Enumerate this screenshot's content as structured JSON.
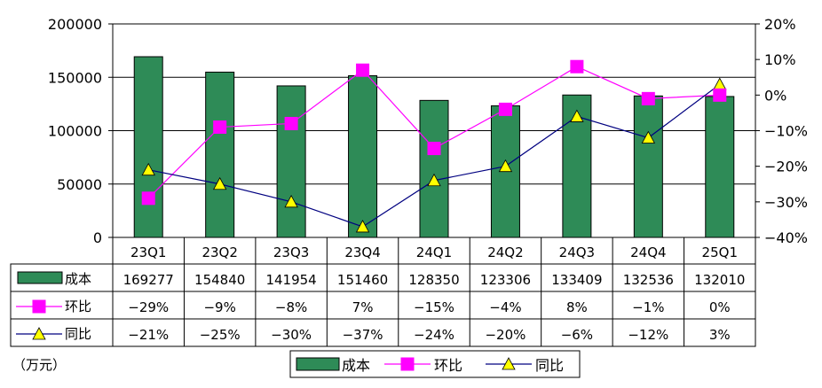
{
  "chart_data": {
    "type": "bar",
    "categories": [
      "23Q1",
      "23Q2",
      "23Q3",
      "23Q4",
      "24Q1",
      "24Q2",
      "24Q3",
      "24Q4",
      "25Q1"
    ],
    "series": [
      {
        "name": "成本",
        "kind": "bar",
        "axis": "left",
        "values": [
          169277,
          154840,
          141954,
          151460,
          128350,
          123306,
          133409,
          132536,
          132010
        ],
        "color": "#2e8b57"
      },
      {
        "name": "环比",
        "kind": "line",
        "axis": "right",
        "marker": "square",
        "values": [
          -29,
          -9,
          -8,
          7,
          -15,
          -4,
          8,
          -1,
          0
        ],
        "labels": [
          "-29%",
          "-9%",
          "-8%",
          "7%",
          "-15%",
          "-4%",
          "8%",
          "-1%",
          "0%"
        ],
        "color": "#ff00ff"
      },
      {
        "name": "同比",
        "kind": "line",
        "axis": "right",
        "marker": "triangle",
        "values": [
          -21,
          -25,
          -30,
          -37,
          -24,
          -20,
          -6,
          -12,
          3
        ],
        "labels": [
          "-21%",
          "-25%",
          "-30%",
          "-37%",
          "-24%",
          "-20%",
          "-6%",
          "-12%",
          "3%"
        ],
        "color": "#000080",
        "marker_color": "#ffff00"
      }
    ],
    "y_left": {
      "ylim": [
        0,
        200000
      ],
      "ticks": [
        0,
        50000,
        100000,
        150000,
        200000
      ],
      "tick_labels": [
        "0",
        "50000",
        "100000",
        "150000",
        "200000"
      ]
    },
    "y_right": {
      "ylim": [
        -40,
        20
      ],
      "ticks": [
        -40,
        -30,
        -20,
        -10,
        0,
        10,
        20
      ],
      "tick_labels": [
        "-40%",
        "-30%",
        "-20%",
        "-10%",
        "0%",
        "10%",
        "20%"
      ]
    },
    "grid": "horizontal",
    "data_table": true,
    "legend": "bottom",
    "unit_label": "（万元）"
  }
}
